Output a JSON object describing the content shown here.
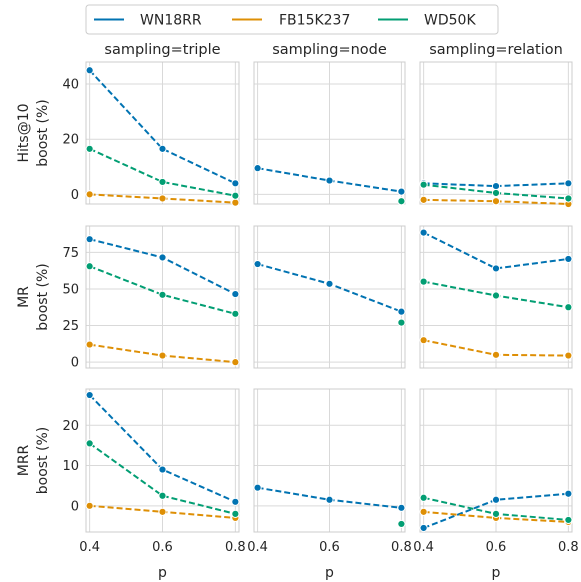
{
  "legend": {
    "entries": [
      {
        "label": "WN18RR",
        "color": "#0173b2"
      },
      {
        "label": "FB15K237",
        "color": "#de8f05"
      },
      {
        "label": "WD50K",
        "color": "#029e73"
      }
    ]
  },
  "chart_data": {
    "type": "line",
    "x": [
      0.4,
      0.6,
      0.8
    ],
    "xticks": [
      "0.4",
      "0.6",
      "0.8"
    ],
    "xlabel": "p",
    "columns": [
      "sampling=triple",
      "sampling=node",
      "sampling=relation"
    ],
    "rows": [
      {
        "ylabel_line1": "Hits@10",
        "ylabel_line2": "boost (%)",
        "ylim": [
          -3.5,
          48
        ],
        "yticks": [
          0,
          20,
          40
        ],
        "panels": [
          {
            "WN18RR": [
              45,
              16.5,
              4
            ],
            "FB15K237": [
              0,
              -1.5,
              -3
            ],
            "WD50K": [
              16.5,
              4.5,
              -0.5
            ]
          },
          {
            "WN18RR": [
              9.5,
              5,
              1
            ],
            "FB15K237": [
              null,
              null,
              null
            ],
            "WD50K": [
              null,
              null,
              -2.5
            ]
          },
          {
            "WN18RR": [
              4,
              3,
              4
            ],
            "FB15K237": [
              -2,
              -2.5,
              -3.5
            ],
            "WD50K": [
              3.5,
              0.5,
              -1.5
            ]
          }
        ]
      },
      {
        "ylabel_line1": "MR",
        "ylabel_line2": "boost (%)",
        "ylim": [
          -4,
          93
        ],
        "yticks": [
          0,
          25,
          50,
          75
        ],
        "panels": [
          {
            "WN18RR": [
              84,
              71.5,
              46.5
            ],
            "FB15K237": [
              12,
              4.5,
              0
            ],
            "WD50K": [
              65.5,
              46,
              33
            ]
          },
          {
            "WN18RR": [
              67,
              53.5,
              34.5
            ],
            "FB15K237": [
              null,
              null,
              null
            ],
            "WD50K": [
              null,
              null,
              27
            ]
          },
          {
            "WN18RR": [
              88.5,
              64,
              70.5
            ],
            "FB15K237": [
              15,
              5,
              4.5
            ],
            "WD50K": [
              55,
              45.5,
              37.5
            ]
          }
        ]
      },
      {
        "ylabel_line1": "MRR",
        "ylabel_line2": "boost (%)",
        "ylim": [
          -6.5,
          29
        ],
        "yticks": [
          0,
          10,
          20
        ],
        "panels": [
          {
            "WN18RR": [
              27.5,
              9,
              1
            ],
            "FB15K237": [
              0,
              -1.5,
              -3
            ],
            "WD50K": [
              15.5,
              2.5,
              -2
            ]
          },
          {
            "WN18RR": [
              4.5,
              1.5,
              -0.5
            ],
            "FB15K237": [
              null,
              null,
              null
            ],
            "WD50K": [
              null,
              null,
              -4.5
            ]
          },
          {
            "WN18RR": [
              -5.5,
              1.5,
              3
            ],
            "FB15K237": [
              -1.5,
              -3,
              -4
            ],
            "WD50K": [
              2,
              -2,
              -3.5
            ]
          }
        ]
      }
    ],
    "grid": true,
    "legend_position": "top"
  }
}
